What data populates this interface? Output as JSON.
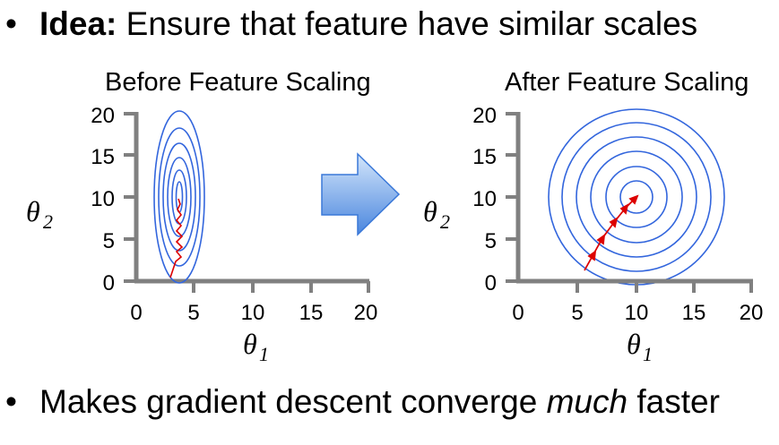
{
  "bullets": {
    "first_label": "Idea:",
    "first_text": "Ensure that feature have similar scales",
    "second_pre": "Makes gradient descent converge",
    "second_emph": "much",
    "second_post": "faster",
    "bullet_char": "•"
  },
  "left_plot": {
    "title": "Before Feature Scaling",
    "x_ticks": [
      "0",
      "5",
      "10",
      "15",
      "20"
    ],
    "y_ticks": [
      "20",
      "15",
      "10",
      "5",
      "0"
    ],
    "x_label": "θ",
    "x_label_sub": "1",
    "y_label": "θ",
    "y_label_sub": "2"
  },
  "right_plot": {
    "title": "After Feature Scaling",
    "x_ticks": [
      "0",
      "5",
      "10",
      "15",
      "20"
    ],
    "y_ticks": [
      "20",
      "15",
      "10",
      "5",
      "0"
    ],
    "x_label": "θ",
    "x_label_sub": "1",
    "y_label": "θ",
    "y_label_sub": "2"
  },
  "colors": {
    "axis": "#808080",
    "contour": "#3366dd",
    "path": "#dd0000",
    "arrow_light": "#bcd6f7",
    "arrow_dark": "#3a78d8"
  },
  "chart_data": [
    {
      "type": "contour",
      "title": "Before Feature Scaling",
      "xlim": [
        0,
        20
      ],
      "ylim": [
        0,
        20
      ],
      "center": [
        3.5,
        10
      ],
      "contour_count": 6,
      "gradient_path": "zigzag from (2.9, 0.5) toward (3.6, 9.5)"
    },
    {
      "type": "contour",
      "title": "After Feature Scaling",
      "xlim": [
        0,
        20
      ],
      "ylim": [
        0,
        20
      ],
      "center": [
        10,
        10
      ],
      "contour_count": 6,
      "gradient_path": [
        [
          5.5,
          1
        ],
        [
          6.3,
          2.4
        ],
        [
          7,
          4
        ],
        [
          8.2,
          5.6
        ],
        [
          9.2,
          7.6
        ],
        [
          10,
          10
        ]
      ]
    }
  ]
}
